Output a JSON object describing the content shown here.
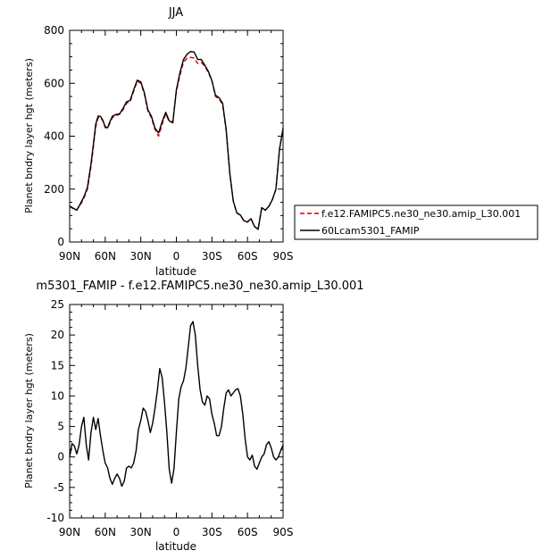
{
  "chart_data": [
    {
      "type": "line",
      "title": "JJA",
      "xlabel": "latitude",
      "ylabel": "Planet bndry layer hgt (meters)",
      "x_ticks": [
        "90N",
        "60N",
        "30N",
        "0",
        "30S",
        "60S",
        "90S"
      ],
      "x_tick_values": [
        90,
        60,
        30,
        0,
        -30,
        -60,
        -90
      ],
      "y_ticks": [
        "0",
        "200",
        "400",
        "600",
        "800"
      ],
      "y_tick_values": [
        0,
        200,
        400,
        600,
        800
      ],
      "xlim": [
        90,
        -90
      ],
      "ylim": [
        0,
        800
      ],
      "legend_placement": "right",
      "series": [
        {
          "name": "f.e12.FAMIPC5.ne30_ne30.amip_L30.001",
          "color": "#cc0000",
          "dash": "dashed",
          "x": [
            90,
            87,
            84,
            81,
            78,
            75,
            72,
            70,
            68,
            66,
            64,
            62,
            60,
            58,
            56,
            54,
            51,
            48,
            45,
            42,
            39,
            36,
            33,
            30,
            27,
            24,
            21,
            18,
            15,
            12,
            9,
            6,
            3,
            0,
            -3,
            -6,
            -9,
            -12,
            -15,
            -18,
            -21,
            -24,
            -27,
            -30,
            -33,
            -36,
            -39,
            -42,
            -45,
            -48,
            -51,
            -54,
            -57,
            -60,
            -63,
            -66,
            -69,
            -72,
            -75,
            -78,
            -81,
            -84,
            -87,
            -90
          ],
          "y": [
            134,
            126,
            122,
            140,
            165,
            200,
            285,
            360,
            435,
            470,
            470,
            458,
            432,
            430,
            450,
            470,
            478,
            482,
            500,
            525,
            530,
            570,
            608,
            600,
            560,
            495,
            470,
            425,
            400,
            445,
            485,
            455,
            455,
            570,
            630,
            680,
            695,
            698,
            695,
            675,
            678,
            665,
            640,
            610,
            550,
            540,
            520,
            420,
            260,
            155,
            110,
            100,
            80,
            75,
            88,
            58,
            50,
            130,
            120,
            135,
            160,
            200,
            350,
            430
          ]
        },
        {
          "name": "60Lcam5301_FAMIP",
          "color": "#000000",
          "dash": "solid",
          "x": [
            90,
            87,
            84,
            81,
            78,
            75,
            72,
            70,
            68,
            66,
            64,
            62,
            60,
            58,
            56,
            54,
            51,
            48,
            45,
            42,
            39,
            36,
            33,
            30,
            27,
            24,
            21,
            18,
            15,
            12,
            9,
            6,
            3,
            0,
            -3,
            -6,
            -9,
            -12,
            -15,
            -18,
            -21,
            -24,
            -27,
            -30,
            -33,
            -36,
            -39,
            -42,
            -45,
            -48,
            -51,
            -54,
            -57,
            -60,
            -63,
            -66,
            -69,
            -72,
            -75,
            -78,
            -81,
            -84,
            -87,
            -90
          ],
          "y": [
            136,
            128,
            120,
            145,
            170,
            206,
            295,
            370,
            445,
            476,
            475,
            460,
            435,
            432,
            455,
            475,
            482,
            484,
            505,
            530,
            535,
            575,
            612,
            605,
            565,
            500,
            475,
            430,
            412,
            455,
            490,
            458,
            450,
            575,
            640,
            690,
            710,
            720,
            718,
            690,
            690,
            668,
            645,
            610,
            555,
            545,
            525,
            425,
            262,
            155,
            110,
            102,
            80,
            76,
            88,
            58,
            48,
            130,
            120,
            135,
            160,
            200,
            350,
            430
          ]
        }
      ]
    },
    {
      "type": "line",
      "title": "m5301_FAMIP - f.e12.FAMIPC5.ne30_ne30.amip_L30.001",
      "xlabel": "latitude",
      "ylabel": "Planet bndry layer hgt (meters)",
      "x_ticks": [
        "90N",
        "60N",
        "30N",
        "0",
        "30S",
        "60S",
        "90S"
      ],
      "x_tick_values": [
        90,
        60,
        30,
        0,
        -30,
        -60,
        -90
      ],
      "y_ticks": [
        "-10",
        "-5",
        "0",
        "5",
        "10",
        "15",
        "20",
        "25"
      ],
      "y_tick_values": [
        -10,
        -5,
        0,
        5,
        10,
        15,
        20,
        25
      ],
      "xlim": [
        90,
        -90
      ],
      "ylim": [
        -10,
        25
      ],
      "series": [
        {
          "color": "#000000",
          "dash": "solid",
          "x": [
            90,
            88,
            86,
            84,
            82,
            80,
            78,
            76,
            74,
            72,
            70,
            68,
            66,
            64,
            62,
            60,
            58,
            56,
            54,
            52,
            50,
            48,
            46,
            44,
            42,
            40,
            38,
            36,
            34,
            32,
            30,
            28,
            26,
            24,
            22,
            20,
            18,
            16,
            14,
            12,
            10,
            8,
            6,
            4,
            2,
            0,
            -2,
            -4,
            -6,
            -8,
            -10,
            -12,
            -14,
            -16,
            -18,
            -20,
            -22,
            -24,
            -26,
            -28,
            -30,
            -32,
            -34,
            -36,
            -38,
            -40,
            -42,
            -44,
            -46,
            -48,
            -50,
            -52,
            -54,
            -56,
            -58,
            -60,
            -62,
            -64,
            -66,
            -68,
            -70,
            -72,
            -74,
            -76,
            -78,
            -80,
            -82,
            -84,
            -86,
            -88,
            -90
          ],
          "y": [
            0,
            2.2,
            1.8,
            0.5,
            2,
            5,
            6.5,
            2,
            -0.5,
            4,
            6.5,
            4.5,
            6.3,
            3.5,
            1,
            -1,
            -1.8,
            -3.5,
            -4.5,
            -3.5,
            -2.8,
            -3.5,
            -4.8,
            -4,
            -1.8,
            -1.5,
            -1.8,
            -1,
            1,
            4.5,
            6,
            8,
            7.5,
            6,
            4,
            5.5,
            8,
            11,
            14.5,
            13,
            9,
            4,
            -2,
            -4.3,
            -2,
            4,
            9.5,
            11.5,
            12.5,
            14.5,
            18,
            21.5,
            22.2,
            20,
            15,
            11,
            9,
            8.5,
            10,
            9.5,
            7,
            5.5,
            3.5,
            3.5,
            5,
            8,
            10.5,
            11,
            10,
            10.5,
            11,
            11.2,
            10,
            7,
            3,
            0,
            -0.5,
            0.3,
            -1.5,
            -2,
            -1,
            0,
            0.5,
            2,
            2.5,
            1.5,
            0,
            -0.5,
            0,
            1,
            2
          ]
        }
      ]
    }
  ]
}
